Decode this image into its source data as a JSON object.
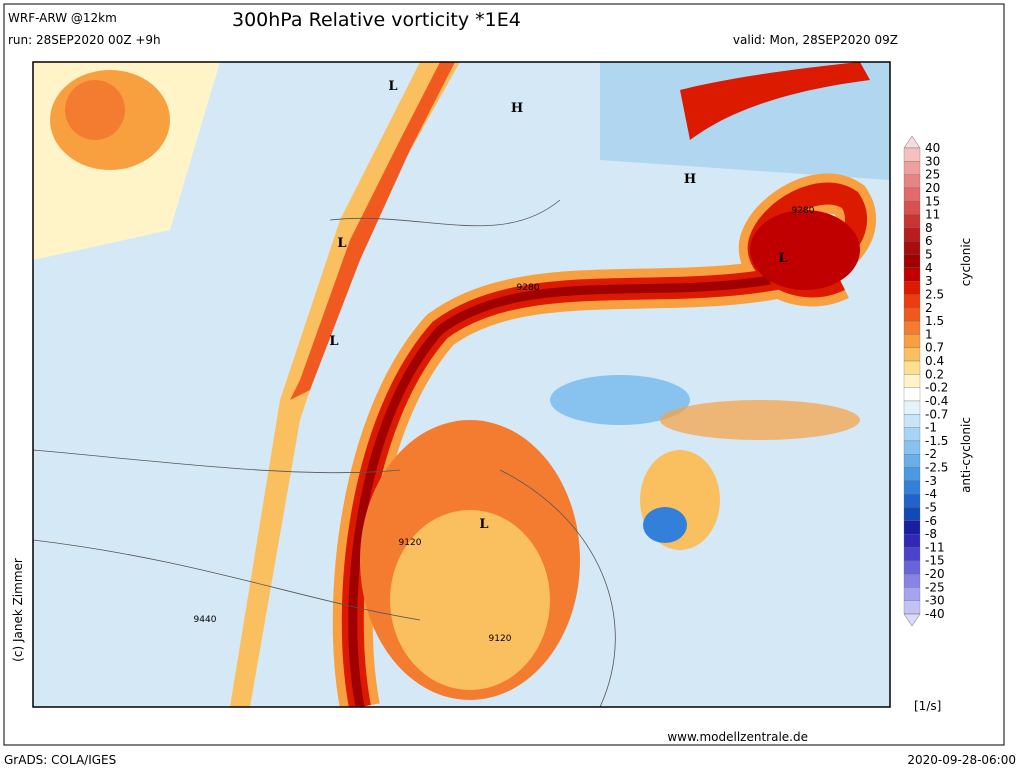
{
  "header": {
    "model": "WRF-ARW @12km",
    "run": "run: 28SEP2020 00Z +9h",
    "title": "300hPa Relative vorticity *1E4",
    "valid": "valid: Mon, 28SEP2020 09Z"
  },
  "map": {
    "pressure_labels": [
      "H",
      "H",
      "L",
      "L",
      "L",
      "L",
      "L"
    ],
    "contour_labels": [
      "9280",
      "9280",
      "9120",
      "9120",
      "9440"
    ]
  },
  "colorbar": {
    "levels": [
      "40",
      "30",
      "25",
      "20",
      "15",
      "11",
      "8",
      "6",
      "5",
      "4",
      "3",
      "2.5",
      "2",
      "1.5",
      "1",
      "0.7",
      "0.4",
      "0.2",
      "-0.2",
      "-0.4",
      "-0.7",
      "-1",
      "-1.5",
      "-2",
      "-2.5",
      "-3",
      "-4",
      "-5",
      "-6",
      "-8",
      "-11",
      "-15",
      "-20",
      "-25",
      "-30",
      "-40"
    ],
    "colors": [
      "#f8dcdc",
      "#f4c0c0",
      "#eea0a0",
      "#e88484",
      "#e26a6a",
      "#d85050",
      "#c83434",
      "#b81e1e",
      "#a80c0c",
      "#a00000",
      "#c00000",
      "#dc1a00",
      "#ec3c10",
      "#f05a20",
      "#f47c30",
      "#f8a040",
      "#fac060",
      "#fce090",
      "#fff4c8",
      "#ffffff",
      "#e4f2fc",
      "#c8e4f8",
      "#a8d4f4",
      "#88c2ee",
      "#6aaeea",
      "#4c98e4",
      "#3280da",
      "#1e64cc",
      "#1448b4",
      "#1a1ea0",
      "#3028b8",
      "#4a44cc",
      "#6864dc",
      "#8884e6",
      "#a6a4ee",
      "#c4c2f4",
      "#dcdaf8"
    ],
    "upper_label": "cyclonic",
    "lower_label": "anti-cyclonic",
    "unit": "[1/s]"
  },
  "footer": {
    "credit": "(c) Janek Zimmer",
    "website": "www.modellzentrale.de",
    "software": "GrADS: COLA/IGES",
    "timestamp": "2020-09-28-06:00"
  }
}
